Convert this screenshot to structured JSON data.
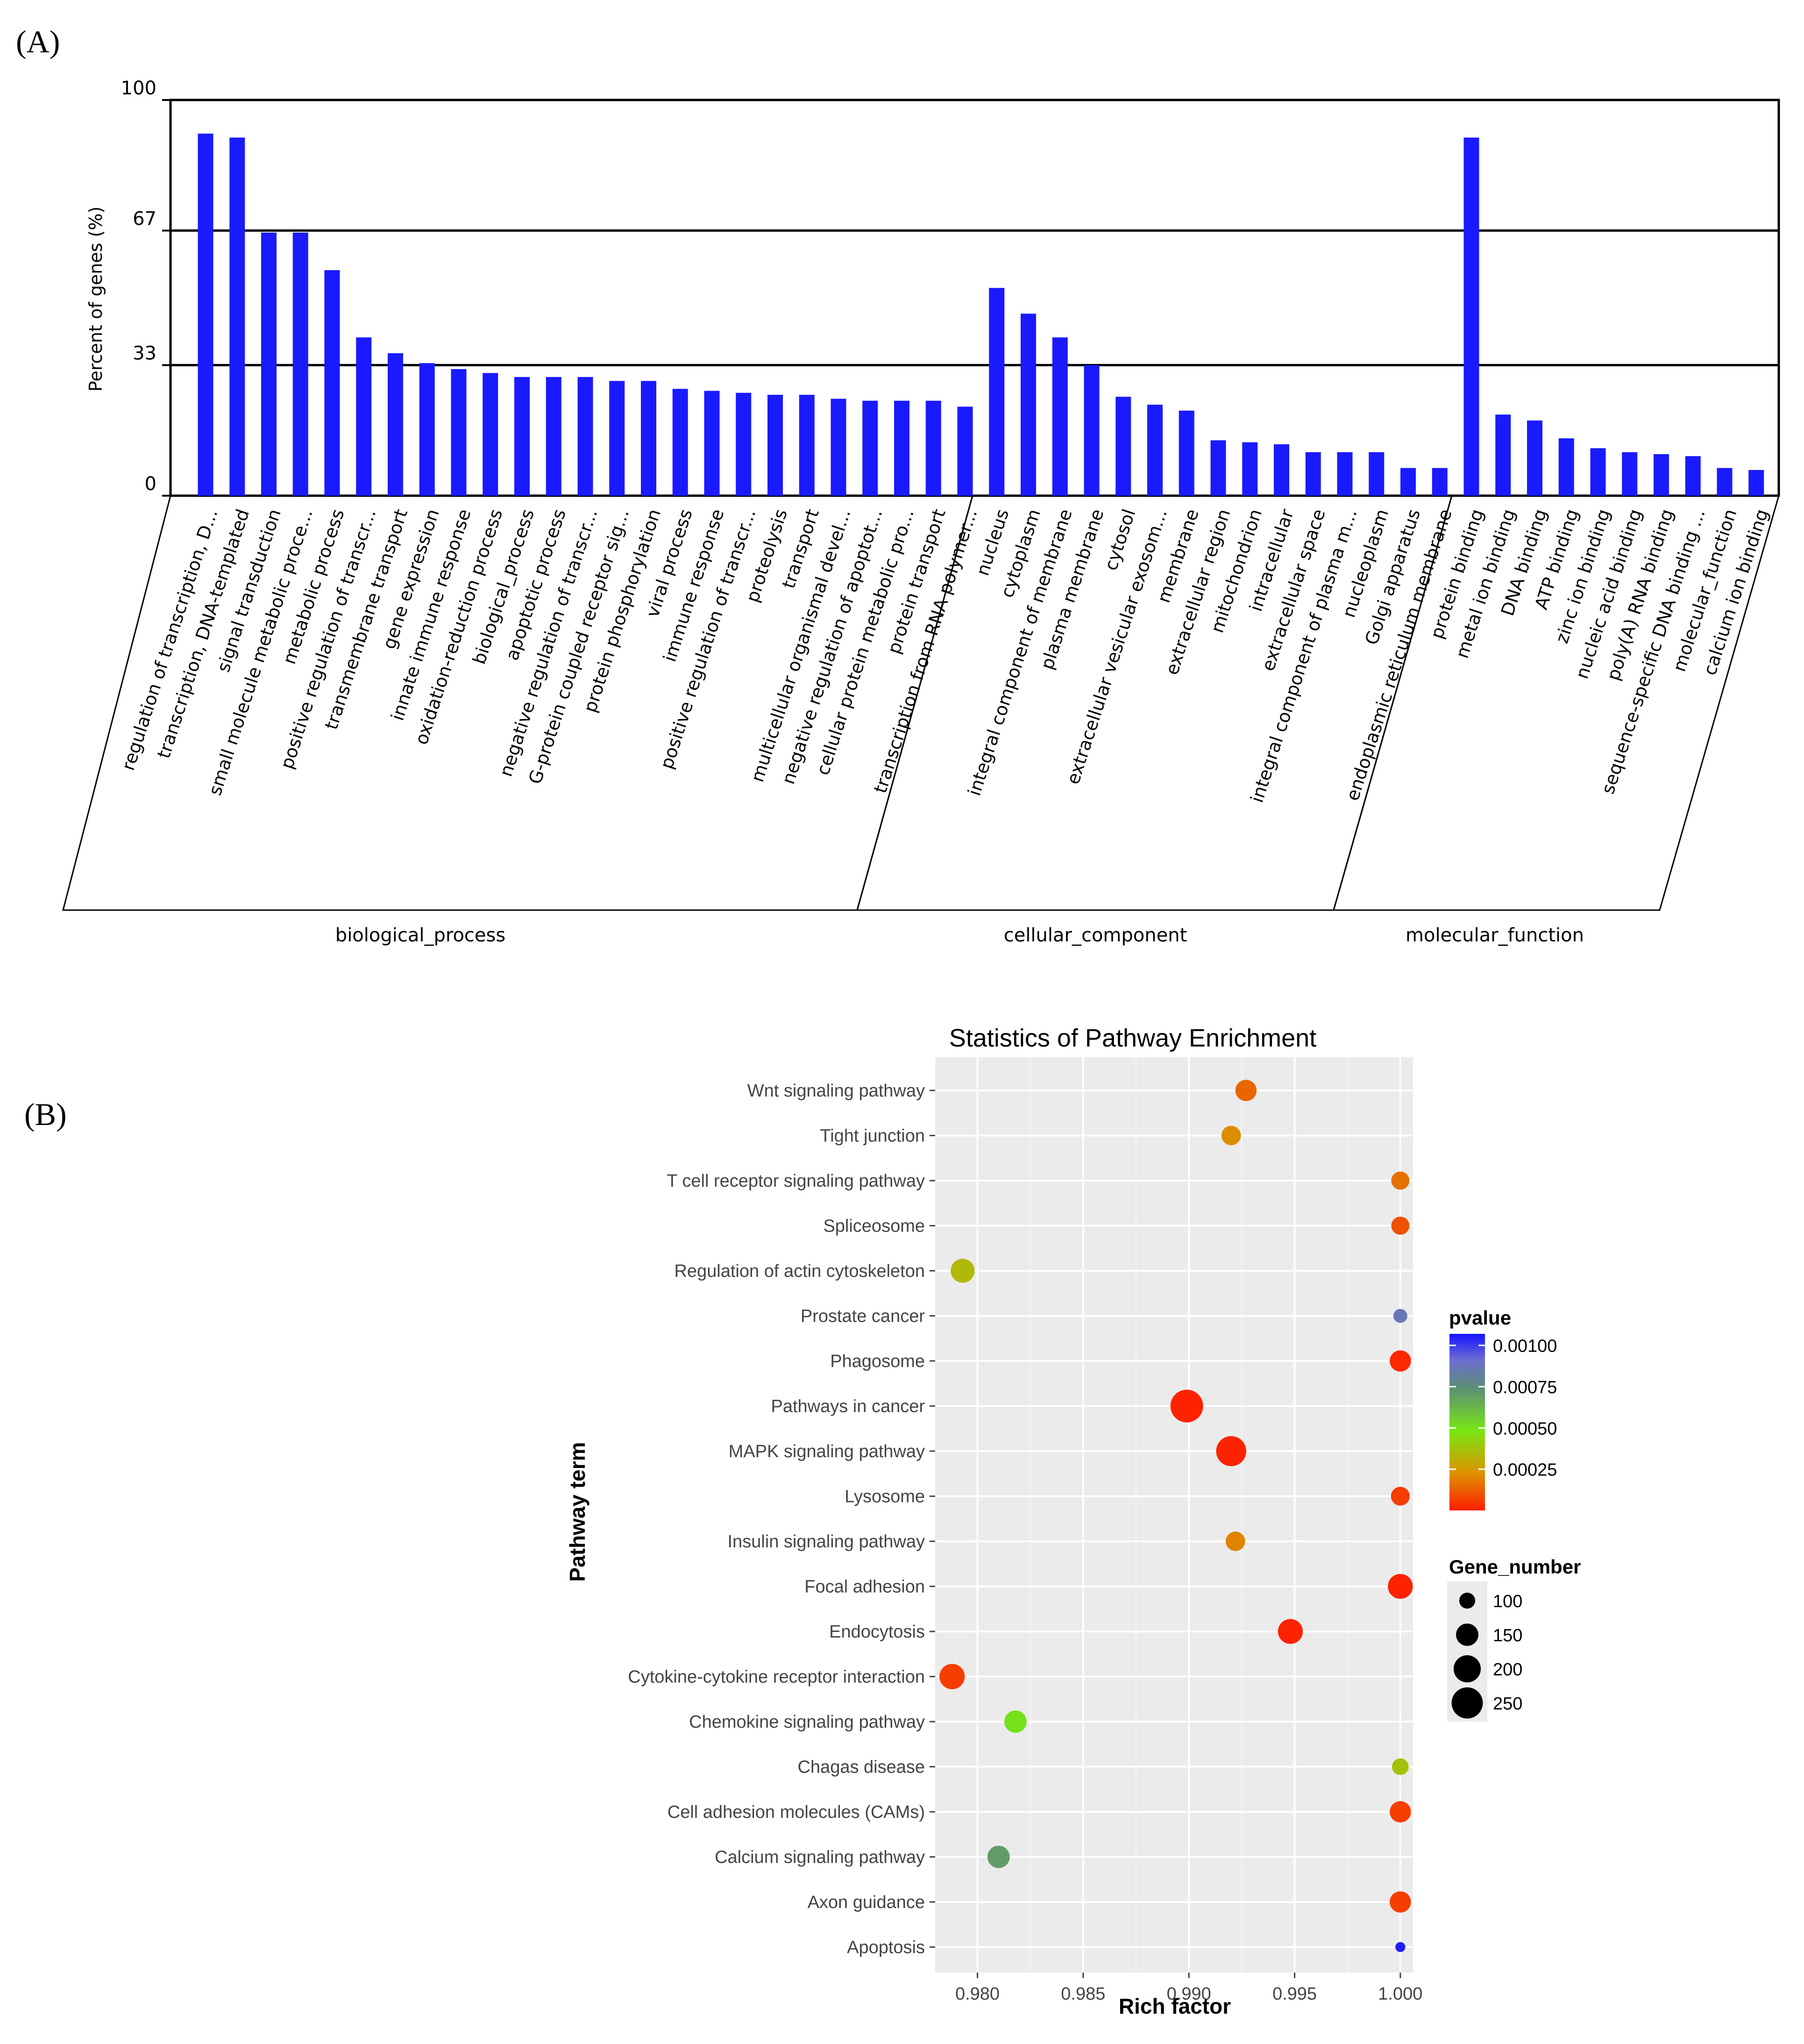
{
  "panel_a_label": "(A)",
  "panel_b_label": "(B)",
  "chart_data": [
    {
      "type": "bar",
      "ylabel": "Percent of genes (%)",
      "yticks": [
        "100",
        "67",
        "33",
        "0"
      ],
      "ylim": [
        0,
        100
      ],
      "grid": "horizontal lines at 33 and 67",
      "groups": [
        {
          "name": "biological_process",
          "categories": [
            "regulation of transcription, D...",
            "transcription, DNA-templated",
            "signal transduction",
            "small molecule metabolic proce...",
            "metabolic process",
            "positive regulation of transcr...",
            "transmembrane transport",
            "gene expression",
            "innate immune response",
            "oxidation-reduction process",
            "biological_process",
            "apoptotic process",
            "negative regulation of transcr...",
            "G-protein coupled receptor sig...",
            "protein phosphorylation",
            "viral process",
            "immune response",
            "positive regulation of transcr...",
            "proteolysis",
            "transport",
            "multicellular organismal devel...",
            "negative regulation of apoptot...",
            "cellular protein metabolic pro...",
            "protein transport",
            "transcription from RNA polymer..."
          ],
          "values": [
            91.5,
            90.5,
            66.5,
            66.5,
            57,
            40,
            36,
            33.5,
            32,
            31,
            30,
            30,
            30,
            29,
            29,
            27,
            26.5,
            26,
            25.5,
            25.5,
            24.5,
            24,
            24,
            24,
            22.5
          ]
        },
        {
          "name": "cellular_component",
          "categories": [
            "nucleus",
            "cytoplasm",
            "integral component of membrane",
            "plasma membrane",
            "cytosol",
            "extracellular vesicular exosom...",
            "membrane",
            "extracellular region",
            "mitochondrion",
            "intracellular",
            "extracellular space",
            "integral component of plasma m...",
            "nucleoplasm",
            "Golgi apparatus",
            "endoplasmic reticulum membrane"
          ],
          "values": [
            52.5,
            46,
            40,
            33,
            25,
            23,
            21.5,
            14,
            13.5,
            13,
            11,
            11,
            11,
            7,
            7
          ]
        },
        {
          "name": "molecular_function",
          "categories": [
            "protein binding",
            "metal ion binding",
            "DNA binding",
            "ATP binding",
            "zinc ion binding",
            "nucleic acid binding",
            "poly(A) RNA binding",
            "sequence-specific DNA binding ...",
            "molecular_function",
            "calcium ion binding"
          ],
          "values": [
            90.5,
            20.5,
            19,
            14.5,
            12,
            11,
            10.5,
            10,
            7,
            6.5
          ]
        }
      ],
      "colors": {
        "bar": "#1a1aff",
        "axis": "#000000"
      }
    },
    {
      "type": "scatter",
      "title": "Statistics of Pathway Enrichment",
      "xlabel": "Rich factor",
      "ylabel": "Pathway term",
      "xticks": [
        "0.980",
        "0.985",
        "0.990",
        "0.995",
        "1.000"
      ],
      "xlim": [
        0.978,
        1.0006
      ],
      "grid": true,
      "background": "#ebebeb",
      "legend_position": "right",
      "color_legend": {
        "title": "pvalue",
        "ticks": [
          "0.00100",
          "0.00075",
          "0.00050",
          "0.00025"
        ],
        "range": [
          0,
          0.00107
        ]
      },
      "size_legend": {
        "title": "Gene_number",
        "ticks": [
          "100",
          "150",
          "200",
          "250"
        ]
      },
      "points": [
        {
          "term": "Wnt signaling pathway",
          "rich_factor": 0.9927,
          "gene_number": 140,
          "pvalue": 0.00014
        },
        {
          "term": "Tight junction",
          "rich_factor": 0.992,
          "gene_number": 125,
          "pvalue": 0.00022
        },
        {
          "term": "T cell receptor signaling pathway",
          "rich_factor": 1.0,
          "gene_number": 115,
          "pvalue": 0.00016
        },
        {
          "term": "Spliceosome",
          "rich_factor": 1.0,
          "gene_number": 115,
          "pvalue": 0.0001
        },
        {
          "term": "Regulation of actin cytoskeleton",
          "rich_factor": 0.9793,
          "gene_number": 165,
          "pvalue": 0.00034
        },
        {
          "term": "Prostate cancer",
          "rich_factor": 1.0,
          "gene_number": 88,
          "pvalue": 0.00086
        },
        {
          "term": "Phagosome",
          "rich_factor": 1.0,
          "gene_number": 140,
          "pvalue": 2e-05
        },
        {
          "term": "Pathways in cancer",
          "rich_factor": 0.9899,
          "gene_number": 270,
          "pvalue": 1e-05
        },
        {
          "term": "MAPK signaling pathway",
          "rich_factor": 0.992,
          "gene_number": 235,
          "pvalue": 1e-05
        },
        {
          "term": "Lysosome",
          "rich_factor": 1.0,
          "gene_number": 120,
          "pvalue": 6e-05
        },
        {
          "term": "Insulin signaling pathway",
          "rich_factor": 0.9922,
          "gene_number": 125,
          "pvalue": 0.0002
        },
        {
          "term": "Focal adhesion",
          "rich_factor": 1.0,
          "gene_number": 175,
          "pvalue": 1e-05
        },
        {
          "term": "Endocytosis",
          "rich_factor": 0.9948,
          "gene_number": 175,
          "pvalue": 1e-05
        },
        {
          "term": "Cytokine-cytokine receptor interaction",
          "rich_factor": 0.9788,
          "gene_number": 180,
          "pvalue": 6e-05
        },
        {
          "term": "Chemokine signaling pathway",
          "rich_factor": 0.9818,
          "gene_number": 150,
          "pvalue": 0.0005
        },
        {
          "term": "Chagas disease",
          "rich_factor": 1.0,
          "gene_number": 105,
          "pvalue": 0.00037
        },
        {
          "term": "Cell adhesion molecules (CAMs)",
          "rich_factor": 1.0,
          "gene_number": 140,
          "pvalue": 6e-05
        },
        {
          "term": "Calcium signaling pathway",
          "rich_factor": 0.981,
          "gene_number": 150,
          "pvalue": 0.0007
        },
        {
          "term": "Axon guidance",
          "rich_factor": 1.0,
          "gene_number": 140,
          "pvalue": 6e-05
        },
        {
          "term": "Apoptosis",
          "rich_factor": 1.0,
          "gene_number": 70,
          "pvalue": 0.00105
        }
      ]
    }
  ]
}
